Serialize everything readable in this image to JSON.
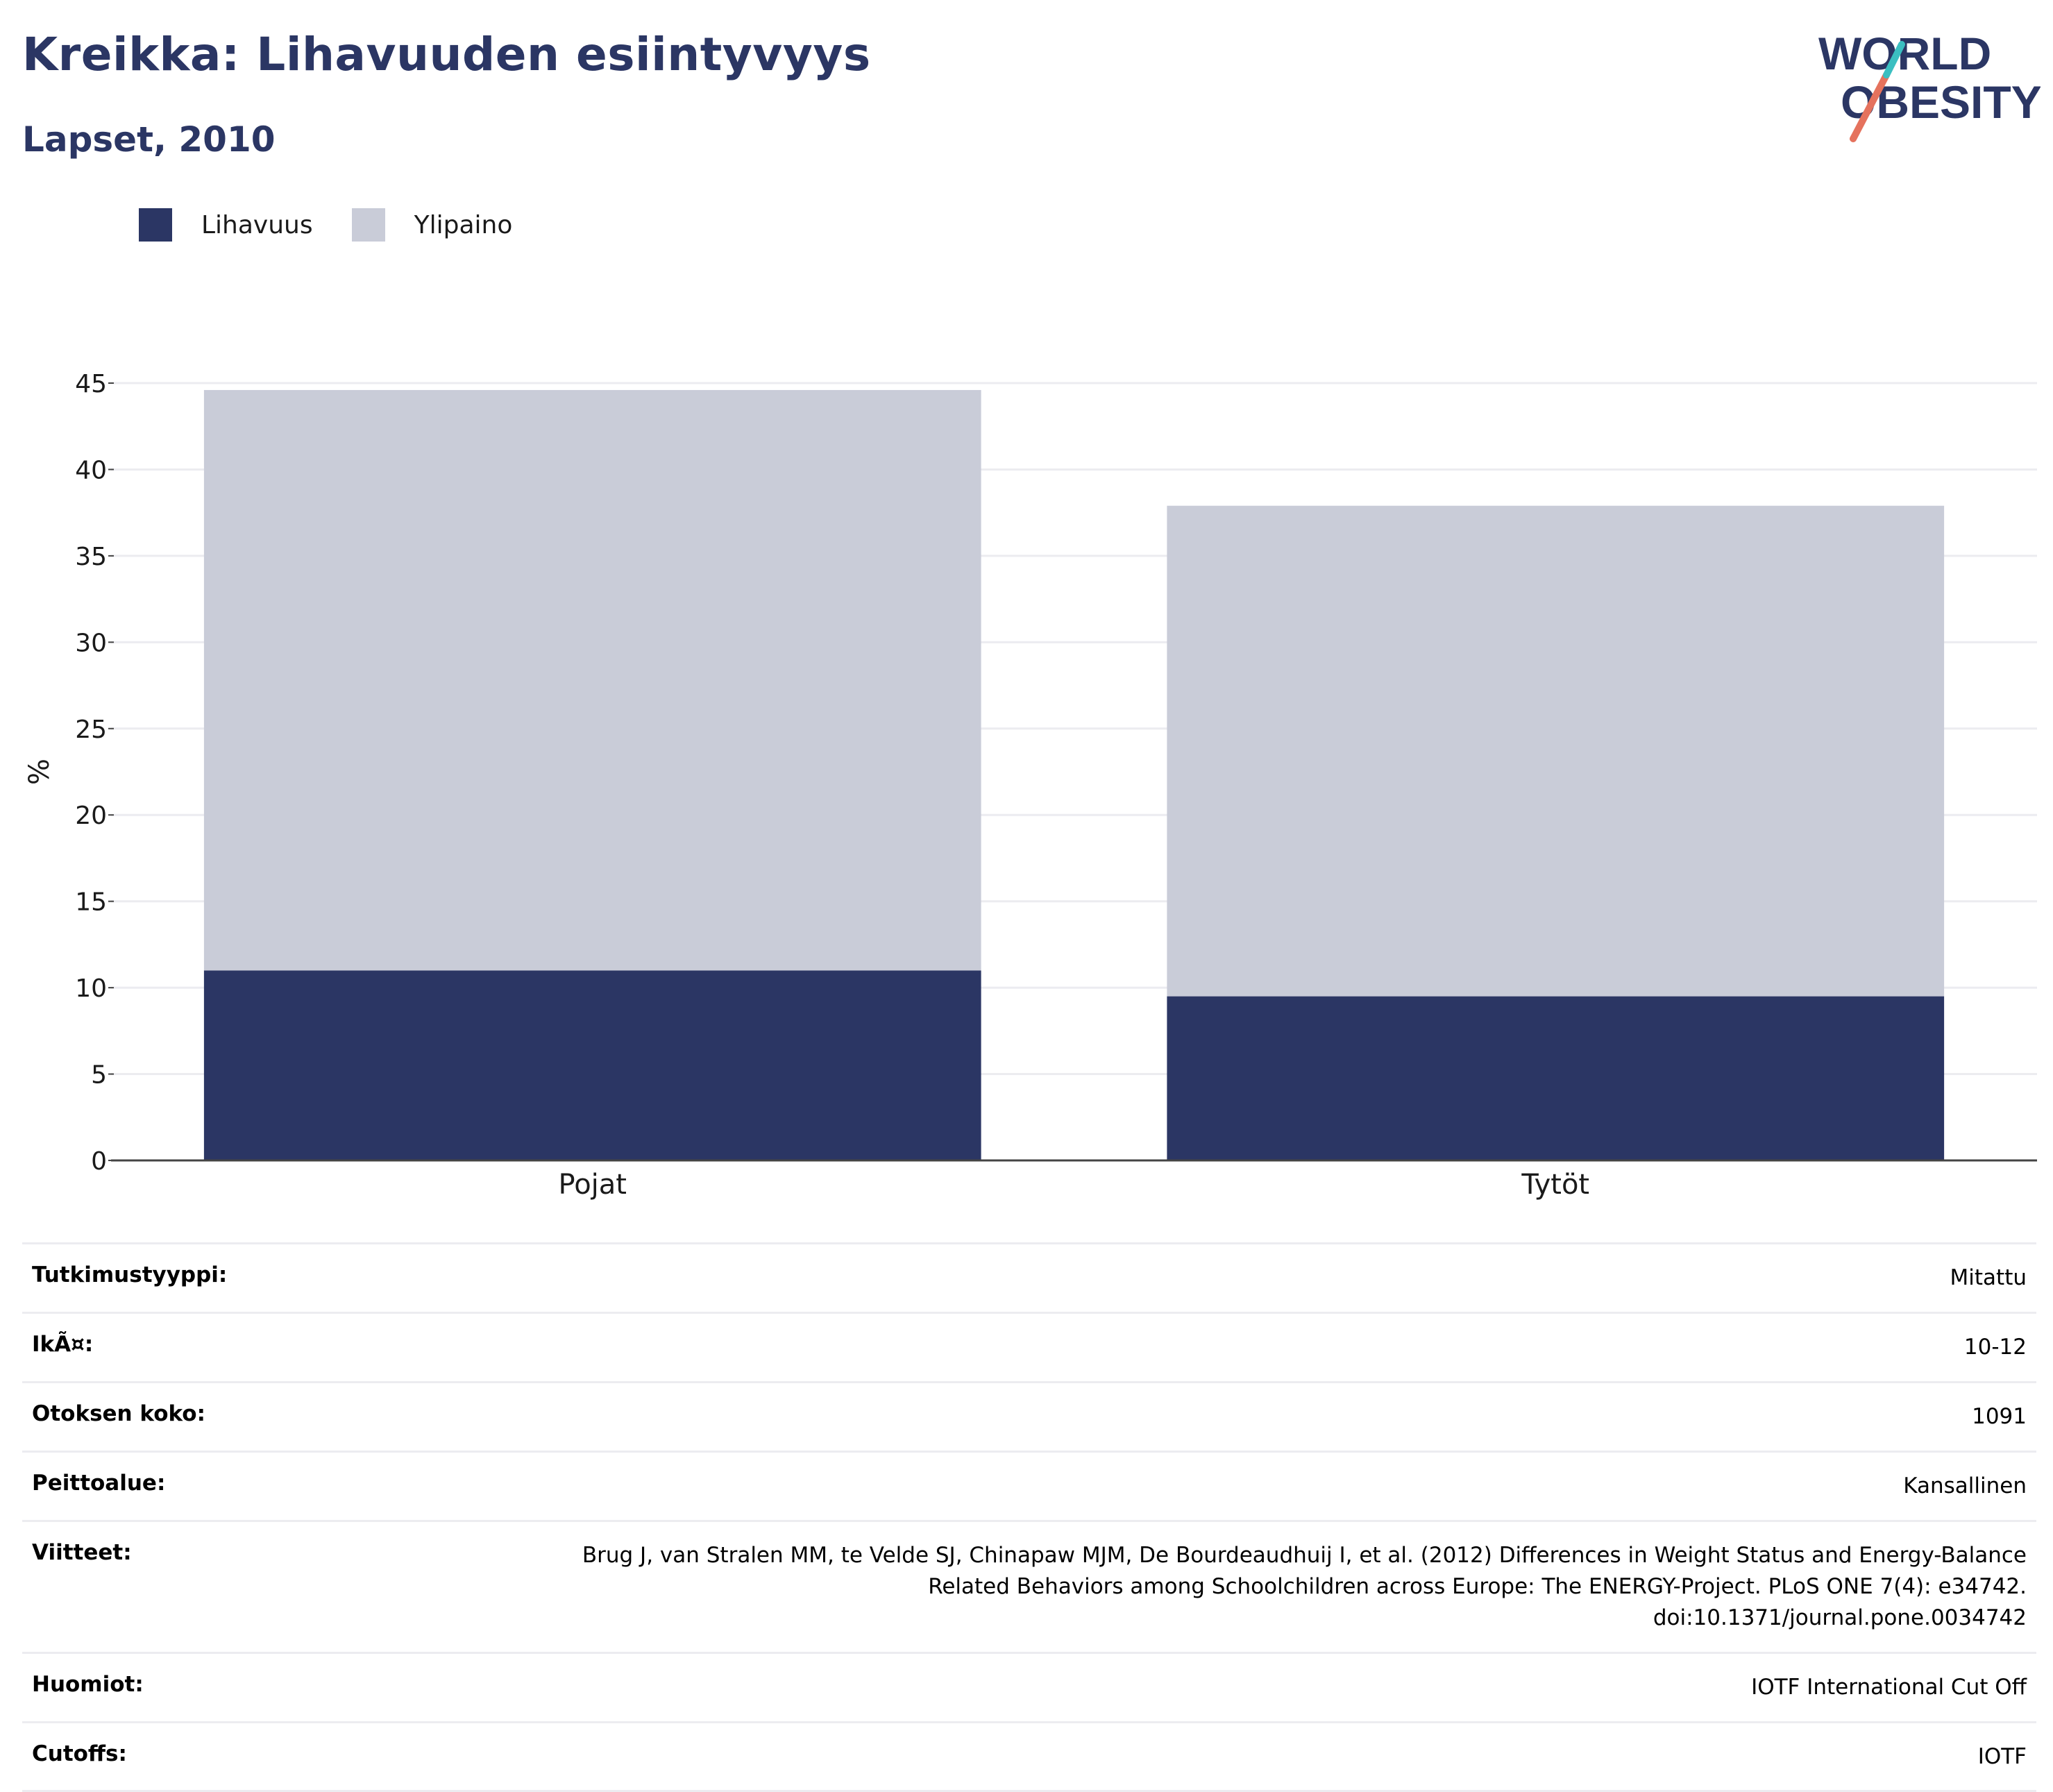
{
  "title": "Kreikka: Lihavuuden esiintyvyys",
  "subtitle": "Lapset, 2010",
  "logo": {
    "line1": "WORLD",
    "line2": "OBESITY",
    "accent": "#e5725d",
    "accent2": "#3bbfc1"
  },
  "legend": [
    {
      "label": "Lihavuus",
      "color": "#2b3664"
    },
    {
      "label": "Ylipaino",
      "color": "#c9ccd8"
    }
  ],
  "chart_data": {
    "type": "bar",
    "stacked": true,
    "categories": [
      "Pojat",
      "Tytöt"
    ],
    "series": [
      {
        "name": "Lihavuus",
        "values": [
          11,
          9.5
        ],
        "color": "#2b3664"
      },
      {
        "name": "Ylipaino",
        "values": [
          33.6,
          28.4
        ],
        "color": "#c9ccd8"
      }
    ],
    "ylabel": "%",
    "ylim": [
      0,
      45
    ],
    "yticks": [
      0,
      5,
      10,
      15,
      20,
      25,
      30,
      35,
      40,
      45
    ],
    "grid": true
  },
  "meta": [
    {
      "key": "Tutkimustyyppi:",
      "value": "Mitattu"
    },
    {
      "key": "IkÃ¤:",
      "value": "10-12"
    },
    {
      "key": "Otoksen koko:",
      "value": "1091"
    },
    {
      "key": "Peittoalue:",
      "value": "Kansallinen"
    },
    {
      "key": "Viitteet:",
      "value": "Brug J, van Stralen MM, te Velde SJ, Chinapaw MJM, De Bourdeaudhuij I, et al. (2012) Differences in Weight Status and Energy-Balance\nRelated Behaviors among Schoolchildren across Europe: The ENERGY-Project. PLoS ONE 7(4): e34742.\ndoi:10.1371/journal.pone.0034742"
    },
    {
      "key": "Huomiot:",
      "value": "IOTF International Cut Off"
    },
    {
      "key": "Cutoffs:",
      "value": "IOTF"
    }
  ]
}
